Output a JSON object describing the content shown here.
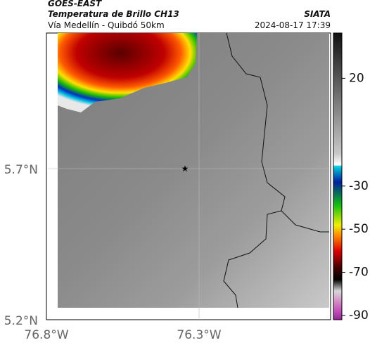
{
  "header": {
    "title": "GOES-EAST",
    "subtitle": "Temperatura de Brillo CH13",
    "region": "Vía Medellín - Quibdó 50km",
    "source": "SIATA",
    "datetime": "2024-08-17 17:39"
  },
  "map": {
    "lat_ticks": [
      "5.7°N",
      "5.2°N"
    ],
    "lon_ticks": [
      "76.8°W",
      "76.3°W"
    ]
  },
  "colorbar": {
    "lim": [
      -92,
      41
    ],
    "ticks": [
      20,
      -30,
      -50,
      -70,
      -90
    ]
  }
}
